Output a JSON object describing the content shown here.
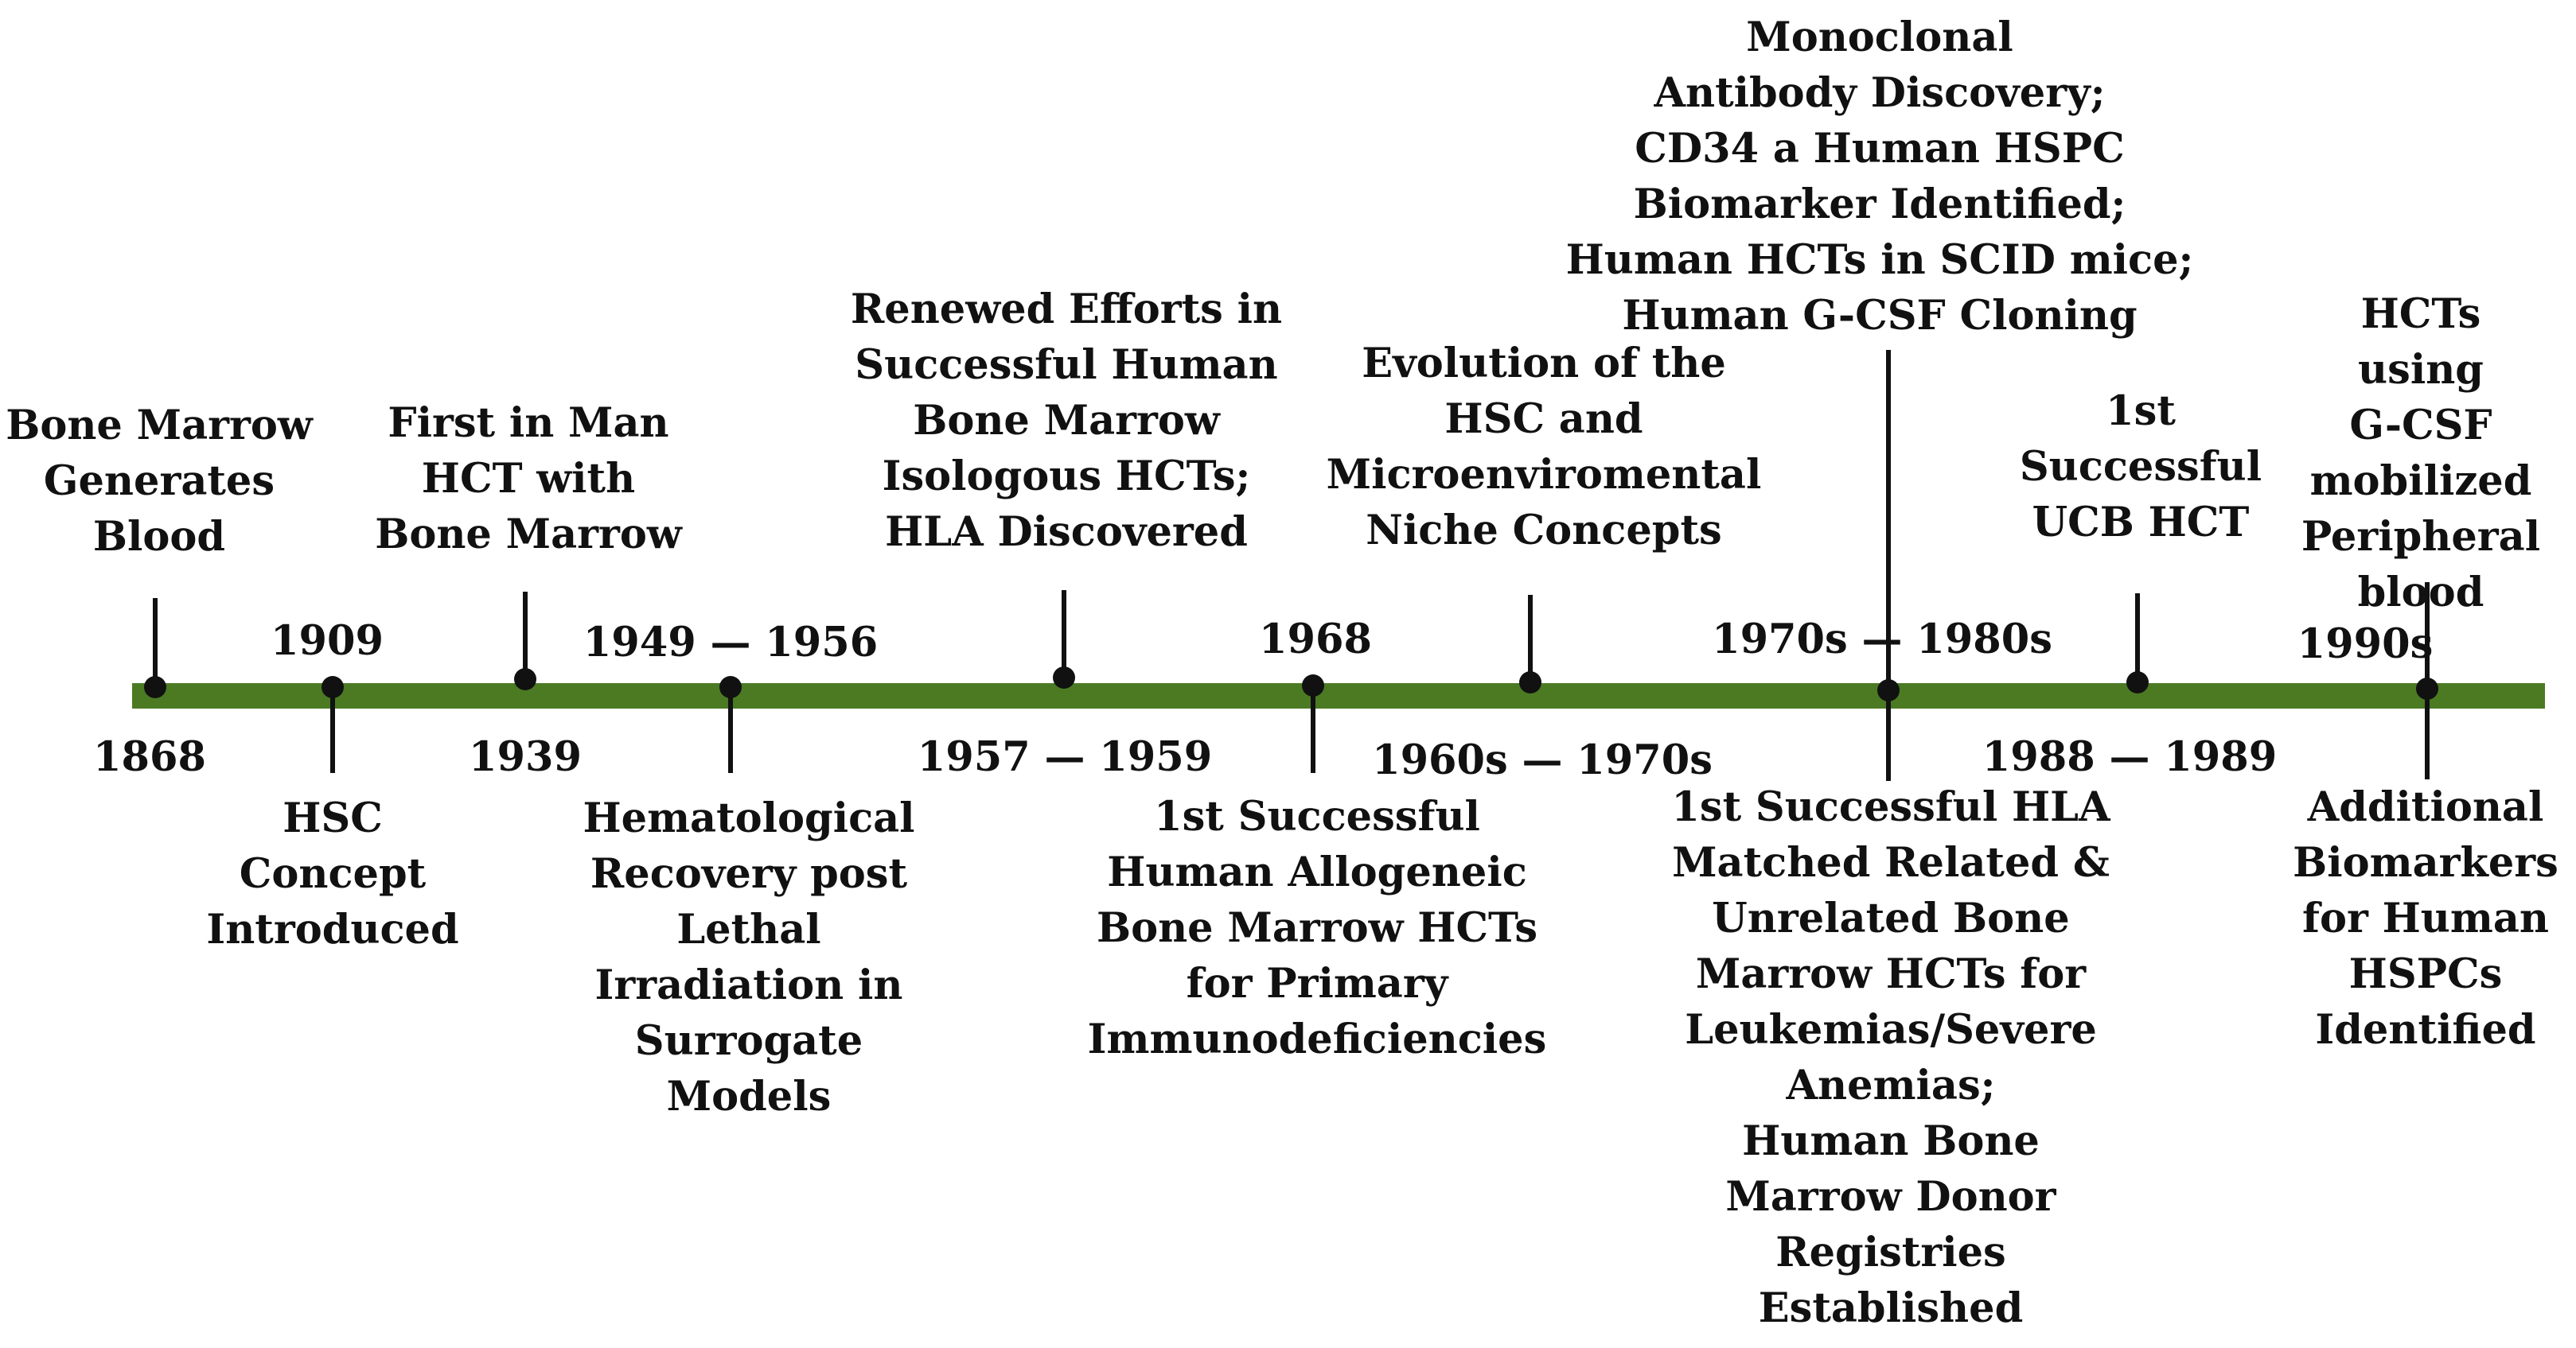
{
  "colors": {
    "axis": "#4b7a23",
    "ink": "#111111"
  },
  "events": [
    {
      "date": "1868",
      "description": "Bone Marrow\nGenerates\nBlood"
    },
    {
      "date": "1909",
      "description": "HSC\nConcept\nIntroduced"
    },
    {
      "date": "1939",
      "description": "First in Man\nHCT with\nBone Marrow"
    },
    {
      "date": "1949 — 1956",
      "description": "Hematological\nRecovery post\nLethal\nIrradiation in\nSurrogate\nModels"
    },
    {
      "date": "1957 — 1959",
      "description": "Renewed Efforts in\nSuccessful Human\nBone Marrow\nIsologous HCTs;\nHLA Discovered"
    },
    {
      "date": "1968",
      "description": "1st Successful\nHuman Allogeneic\nBone Marrow HCTs\nfor Primary\nImmunodeficiencies"
    },
    {
      "date": "1960s — 1970s",
      "description": "Evolution of the\nHSC and\nMicroenviromental\nNiche Concepts"
    },
    {
      "date": "1970s — 1980s",
      "description_above": "Monoclonal\nAntibody Discovery;\nCD34 a Human HSPC\nBiomarker Identified;\nHuman HCTs in  SCID mice;\nHuman G-CSF Cloning",
      "description_below": "1st Successful HLA\nMatched Related &\nUnrelated Bone\nMarrow HCTs for\nLeukemias/Severe\nAnemias;\nHuman Bone\nMarrow Donor\nRegistries\nEstablished"
    },
    {
      "date": "1988 — 1989",
      "description": "1st\nSuccessful\nUCB HCT"
    },
    {
      "date": "1990s",
      "description_above": "HCTs using\nG-CSF\nmobilized\nPeripheral\nblood",
      "description_below": "Additional\nBiomarkers\nfor Human\nHSPCs\nIdentified"
    }
  ]
}
